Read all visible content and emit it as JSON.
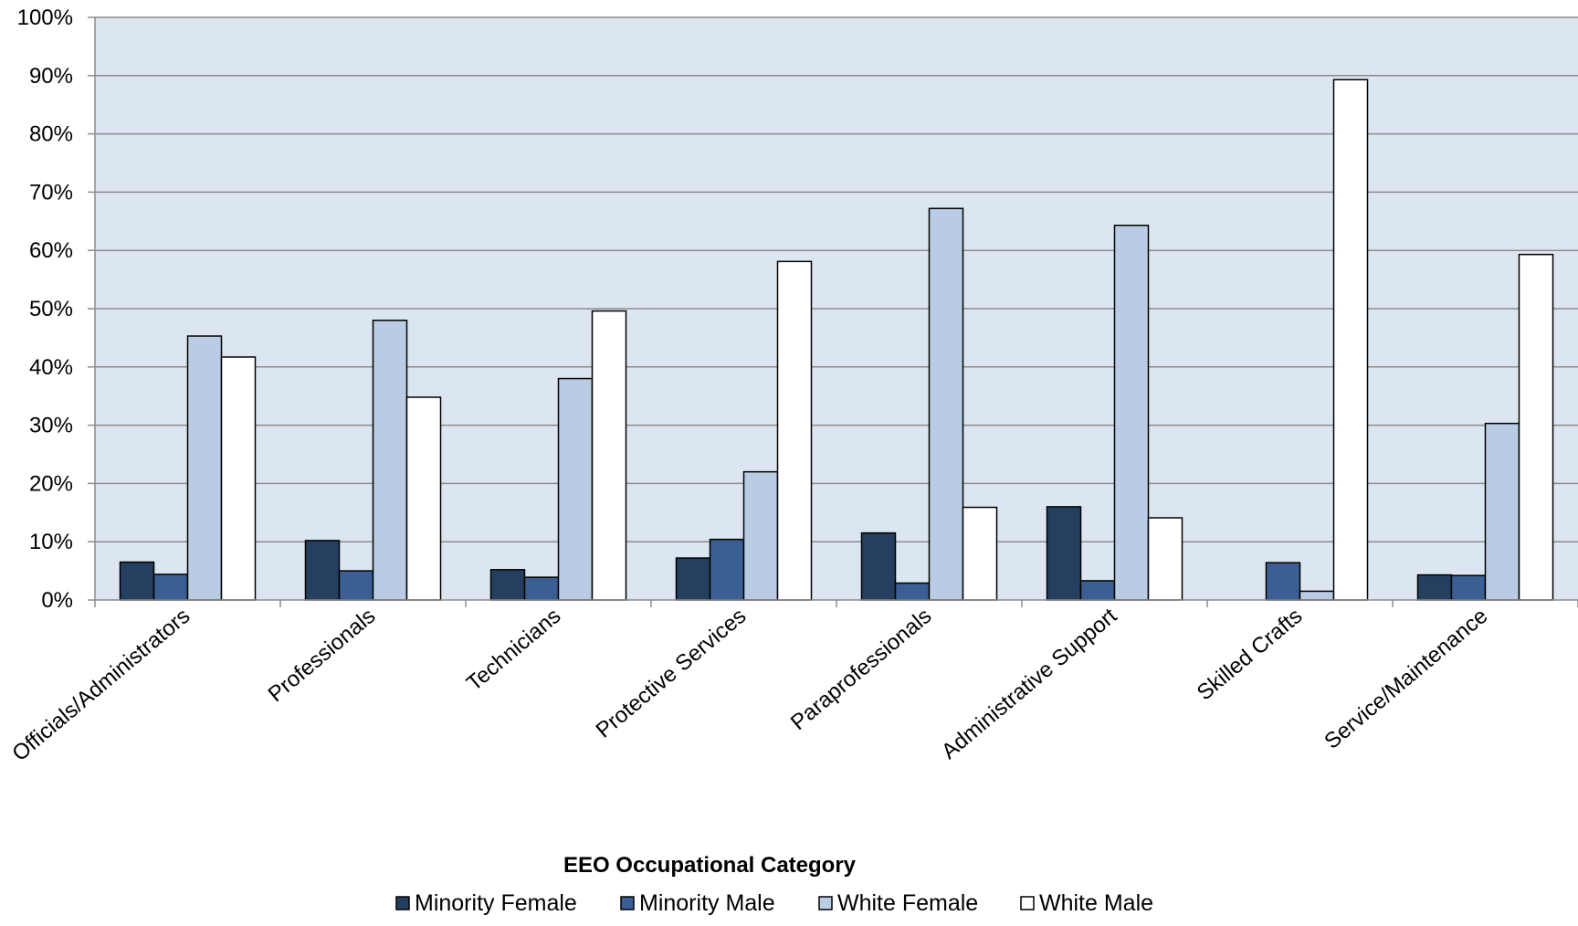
{
  "chart_data": {
    "type": "bar",
    "title": "",
    "xlabel": "EEO Occupational Category",
    "ylabel": "",
    "ylim": [
      0,
      100
    ],
    "yticks": [
      0,
      10,
      20,
      30,
      40,
      50,
      60,
      70,
      80,
      90,
      100
    ],
    "ytick_suffix": "%",
    "grid": true,
    "legend_position": "bottom",
    "plot_background": "#dce6f0",
    "categories": [
      "Officials/Administrators",
      "Professionals",
      "Technicians",
      "Protective Services",
      "Paraprofessionals",
      "Administrative Support",
      "Skilled Crafts",
      "Service/Maintenance"
    ],
    "series": [
      {
        "name": "Minority Female",
        "color": "#243f60",
        "values": [
          6.5,
          10.2,
          5.2,
          7.2,
          11.5,
          16.0,
          0,
          4.3
        ]
      },
      {
        "name": "Minority Male",
        "color": "#3b5f93",
        "values": [
          4.4,
          5.0,
          3.9,
          10.4,
          2.9,
          3.3,
          6.4,
          4.2
        ]
      },
      {
        "name": "White Female",
        "color": "#b9cce4",
        "values": [
          45.3,
          48.0,
          38.0,
          22.0,
          67.2,
          64.3,
          1.5,
          30.3
        ]
      },
      {
        "name": "White Male",
        "color": "#ffffff",
        "values": [
          41.7,
          34.8,
          49.6,
          58.1,
          15.9,
          14.1,
          89.3,
          59.3
        ]
      }
    ]
  }
}
